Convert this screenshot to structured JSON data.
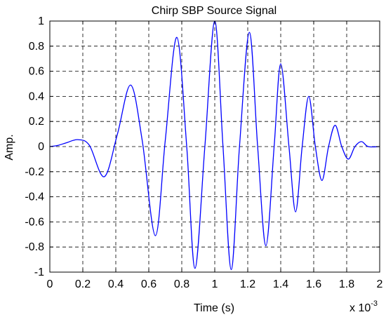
{
  "chart_data": {
    "type": "line",
    "title": "Chirp SBP Source Signal",
    "xlabel": "Time (s)",
    "ylabel": "Amp.",
    "x_exponent_base": "x 10",
    "x_exponent_power": "-3",
    "xlim": [
      0,
      2
    ],
    "ylim": [
      -1,
      1
    ],
    "x_ticks": [
      "0",
      "0.2",
      "0.4",
      "0.6",
      "0.8",
      "1",
      "1.2",
      "1.4",
      "1.6",
      "1.8",
      "2"
    ],
    "y_ticks": [
      "-1",
      "-0.8",
      "-0.6",
      "-0.4",
      "-0.2",
      "0",
      "0.2",
      "0.4",
      "0.6",
      "0.8",
      "1"
    ],
    "grid": true,
    "grid_style": "dashed",
    "line_color": "#0000ff",
    "series": [
      {
        "x": [
          0,
          0.05,
          0.1,
          0.17,
          0.24,
          0.33,
          0.41,
          0.49,
          0.56,
          0.64,
          0.7,
          0.77,
          0.83,
          0.88,
          0.94,
          1.0,
          1.05,
          1.1,
          1.15,
          1.21,
          1.26,
          1.31,
          1.36,
          1.4,
          1.45,
          1.49,
          1.53,
          1.57,
          1.61,
          1.65,
          1.69,
          1.73,
          1.77,
          1.81,
          1.85,
          1.89,
          1.93,
          2.0
        ],
        "y": [
          0,
          0.01,
          0.03,
          0.055,
          0.01,
          -0.24,
          0.1,
          0.49,
          0.05,
          -0.71,
          0.05,
          0.87,
          0.0,
          -0.97,
          0.0,
          1.0,
          0.0,
          -0.98,
          0.0,
          0.91,
          0.0,
          -0.79,
          0.0,
          0.66,
          0.0,
          -0.52,
          0.0,
          0.4,
          0.0,
          -0.27,
          0.0,
          0.17,
          0.0,
          -0.1,
          0.0,
          0.04,
          0.0,
          0.0
        ]
      }
    ]
  }
}
